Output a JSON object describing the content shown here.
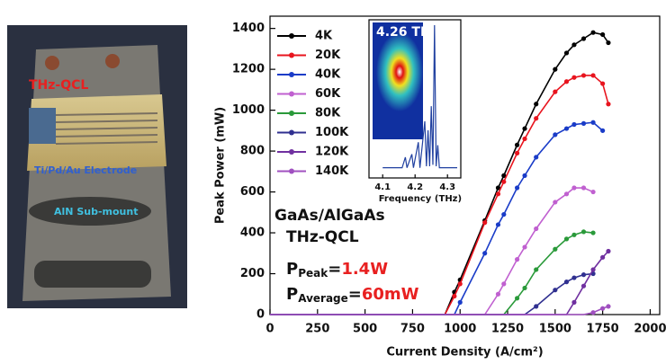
{
  "photo": {
    "labels": [
      "THz-QCL",
      "Ti/Pd/Au Electrode",
      "AlN Sub-mount"
    ]
  },
  "chart_data": [
    {
      "type": "line",
      "xlabel": "Current Density (A/cm²)",
      "ylabel": "Peak Power (mW)",
      "xlim": [
        0,
        2050
      ],
      "ylim": [
        0,
        1460
      ],
      "xticks": [
        0,
        250,
        500,
        750,
        1000,
        1250,
        1500,
        1750,
        2000
      ],
      "yticks": [
        0,
        200,
        400,
        600,
        800,
        1000,
        1200,
        1400
      ],
      "legend": "upper left",
      "annotations": {
        "material": "GaAs/AlGaAs",
        "device": "THz-QCL",
        "peak": {
          "symbol": "P",
          "subscript": "Peak",
          "equals": "=",
          "value": "1.4W"
        },
        "average": {
          "symbol": "P",
          "subscript": "Average",
          "equals": "=",
          "value": "60mW"
        }
      },
      "x": [
        0,
        920,
        970,
        1000,
        1130,
        1200,
        1230,
        1300,
        1340,
        1400,
        1500,
        1560,
        1600,
        1650,
        1700,
        1750,
        1780
      ],
      "series": [
        {
          "name": "4K",
          "color": "#000000",
          "values": [
            0,
            0,
            110,
            170,
            460,
            620,
            680,
            830,
            910,
            1030,
            1200,
            1280,
            1320,
            1350,
            1380,
            1370,
            1330
          ]
        },
        {
          "name": "20K",
          "color": "#e8141e",
          "values": [
            0,
            0,
            90,
            150,
            450,
            590,
            650,
            790,
            860,
            960,
            1090,
            1140,
            1160,
            1170,
            1170,
            1130,
            1030
          ]
        },
        {
          "name": "40K",
          "color": "#1a3cc8",
          "values": [
            0,
            0,
            0,
            60,
            300,
            440,
            490,
            620,
            680,
            770,
            880,
            910,
            930,
            935,
            940,
            900,
            null
          ]
        },
        {
          "name": "60K",
          "color": "#c060d0",
          "values": [
            0,
            0,
            0,
            0,
            0,
            100,
            150,
            270,
            330,
            420,
            550,
            590,
            620,
            620,
            600,
            null,
            null
          ]
        },
        {
          "name": "80K",
          "color": "#2a9a3a",
          "values": [
            0,
            0,
            0,
            0,
            0,
            0,
            0,
            80,
            130,
            220,
            320,
            370,
            390,
            405,
            400,
            null,
            null
          ]
        },
        {
          "name": "100K",
          "color": "#303090",
          "values": [
            0,
            0,
            0,
            0,
            0,
            0,
            0,
            0,
            0,
            40,
            120,
            160,
            180,
            195,
            200,
            null,
            null
          ]
        },
        {
          "name": "120K",
          "color": "#7030a0",
          "values": [
            0,
            0,
            0,
            0,
            0,
            0,
            0,
            0,
            0,
            0,
            0,
            0,
            60,
            140,
            220,
            280,
            310
          ]
        },
        {
          "name": "140K",
          "color": "#a050c0",
          "values": [
            0,
            0,
            0,
            0,
            0,
            0,
            0,
            0,
            0,
            0,
            0,
            0,
            0,
            0,
            10,
            30,
            40
          ]
        }
      ]
    },
    {
      "type": "line",
      "title": "4.26 THz",
      "xlabel": "Frequency",
      "xunit": "(THz)",
      "xlim": [
        4.08,
        4.34
      ],
      "ylim": [
        0,
        1
      ],
      "xticks": [
        4.1,
        4.2,
        4.3
      ],
      "x": [
        4.1,
        4.16,
        4.17,
        4.175,
        4.19,
        4.195,
        4.21,
        4.215,
        4.23,
        4.235,
        4.24,
        4.245,
        4.25,
        4.255,
        4.26,
        4.265,
        4.27,
        4.275,
        4.33
      ],
      "series": [
        {
          "name": null,
          "color": "#2040a0",
          "values": [
            0.05,
            0.05,
            0.12,
            0.05,
            0.14,
            0.05,
            0.22,
            0.05,
            0.36,
            0.06,
            0.3,
            0.06,
            0.46,
            0.07,
            1.0,
            0.06,
            0.2,
            0.05,
            0.05
          ]
        }
      ]
    }
  ]
}
